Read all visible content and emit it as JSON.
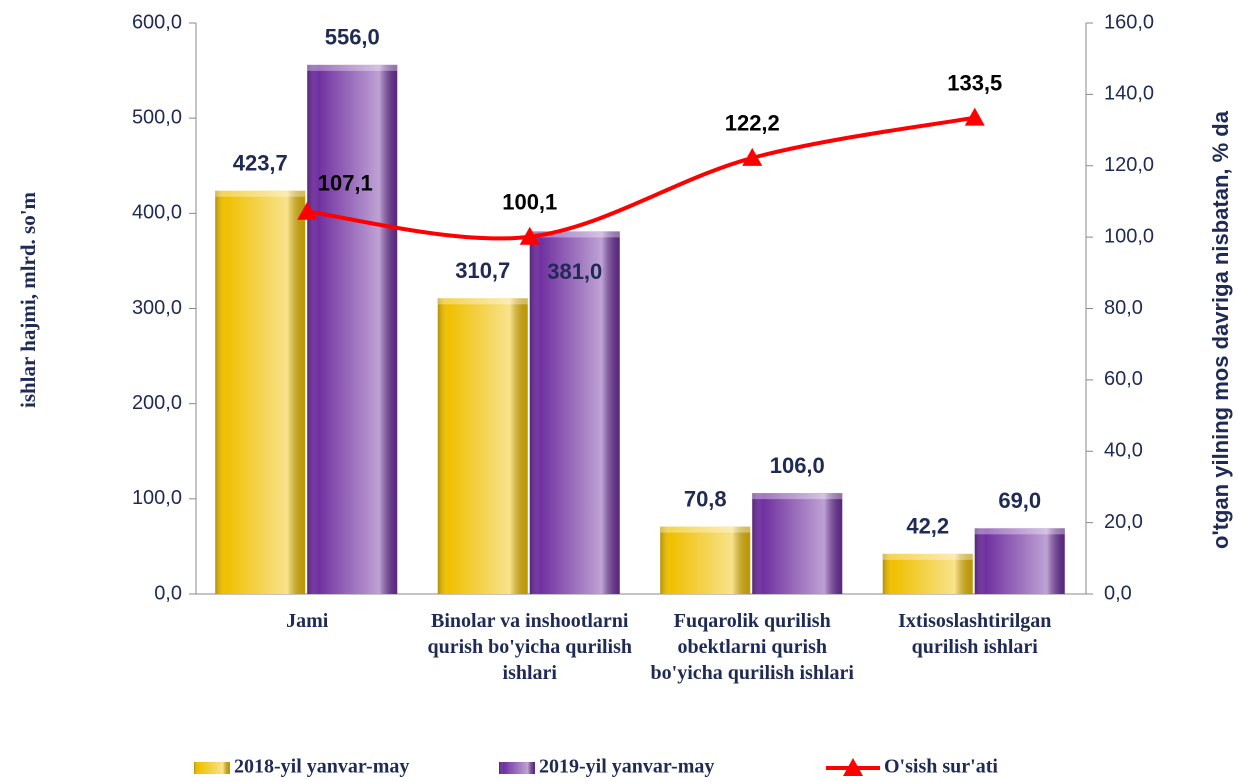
{
  "chart_data": {
    "type": "bar",
    "categories": [
      "Jami",
      "Binolar va inshootlarni qurish bo'yicha qurilish ishlari",
      "Fuqarolik qurilish obektlarni qurish bo'yicha qurilish ishlari",
      "Ixtisoslashtirilgan qurilish ishlari"
    ],
    "series": [
      {
        "name": "2018-yil yanvar-may",
        "color": "#f0c000",
        "type": "bar",
        "values": [
          423.7,
          310.7,
          70.8,
          42.2
        ],
        "value_labels": [
          "423,7",
          "310,7",
          "70,8",
          "42,2"
        ]
      },
      {
        "name": "2019-yil yanvar-may",
        "color": "#7030a0",
        "type": "bar",
        "values": [
          556.0,
          381.0,
          106.0,
          69.0
        ],
        "value_labels": [
          "556,0",
          "381,0",
          "106,0",
          "69,0"
        ]
      },
      {
        "name": "O'sish sur'ati",
        "color": "#ff0000",
        "type": "line",
        "axis": "y2",
        "values": [
          107.1,
          100.1,
          122.2,
          133.5
        ],
        "value_labels": [
          "107,1",
          "100,1",
          "122,2",
          "133,5"
        ]
      }
    ],
    "ylabel": "ishlar hajmi, mlrd. so'm",
    "y2label": "o'tgan yilning mos davriga nisbatan, % da",
    "ylim": [
      0,
      600
    ],
    "yticks": [
      {
        "value": 0,
        "label": "0,0"
      },
      {
        "value": 100,
        "label": "100,0"
      },
      {
        "value": 200,
        "label": "200,0"
      },
      {
        "value": 300,
        "label": "300,0"
      },
      {
        "value": 400,
        "label": "400,0"
      },
      {
        "value": 500,
        "label": "500,0"
      },
      {
        "value": 600,
        "label": "600,0"
      }
    ],
    "y2lim": [
      0,
      160
    ],
    "y2ticks": [
      {
        "value": 0,
        "label": "0,0"
      },
      {
        "value": 20,
        "label": "20,0"
      },
      {
        "value": 40,
        "label": "40,0"
      },
      {
        "value": 60,
        "label": "60,0"
      },
      {
        "value": 80,
        "label": "80,0"
      },
      {
        "value": 100,
        "label": "100,0"
      },
      {
        "value": 120,
        "label": "120,0"
      },
      {
        "value": 140,
        "label": "140,0"
      },
      {
        "value": 160,
        "label": "160,0"
      }
    ],
    "legend": "bottom"
  }
}
